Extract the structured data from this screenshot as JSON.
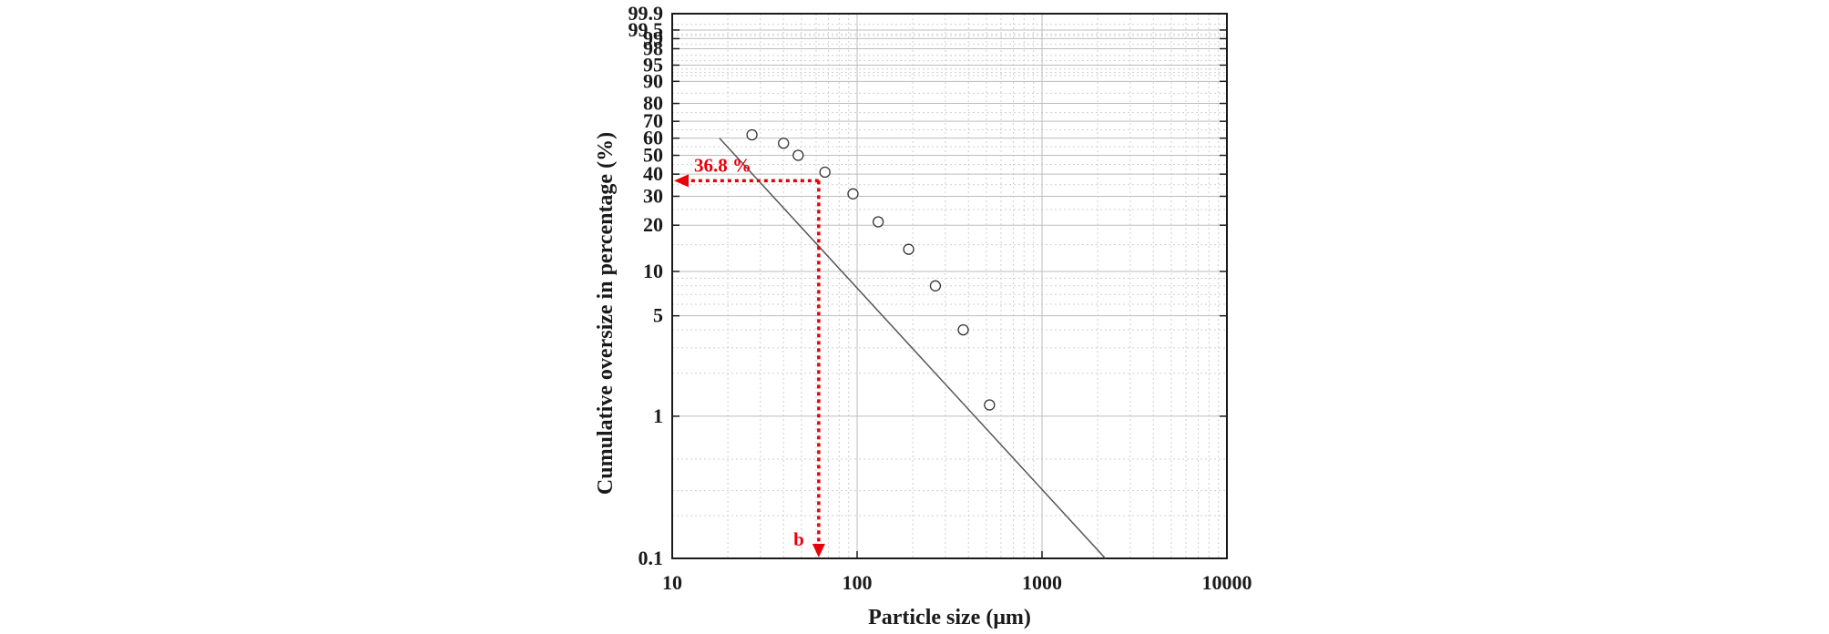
{
  "chart_data": {
    "type": "scatter",
    "xlabel": "Particle size (μm)",
    "ylabel": "Cumulative oversize in percentage (%)",
    "x_scale": "log",
    "y_scale": "weibull",
    "xlim": [
      10,
      10000
    ],
    "ylim": [
      0.1,
      99.9
    ],
    "x_ticks": [
      "10",
      "100",
      "1000",
      "10000"
    ],
    "y_ticks": [
      "0.1",
      "1",
      "5",
      "10",
      "20",
      "30",
      "40",
      "50",
      "60",
      "70",
      "80",
      "90",
      "95",
      "98",
      "99",
      "99.5",
      "99.9"
    ],
    "grid": true,
    "points": [
      {
        "x": 27,
        "y": 62
      },
      {
        "x": 40,
        "y": 57
      },
      {
        "x": 48,
        "y": 50
      },
      {
        "x": 67,
        "y": 41
      },
      {
        "x": 95,
        "y": 31
      },
      {
        "x": 130,
        "y": 21
      },
      {
        "x": 190,
        "y": 14
      },
      {
        "x": 265,
        "y": 8
      },
      {
        "x": 375,
        "y": 4
      },
      {
        "x": 520,
        "y": 1.2
      }
    ],
    "fit_line": {
      "x": [
        18,
        2200
      ],
      "y": [
        60,
        0.1
      ]
    },
    "annotations": [
      {
        "text": "36.8 %",
        "x": 62,
        "y": 36.8
      },
      {
        "text": "b",
        "x": 62,
        "y": 0.1
      }
    ],
    "colors": {
      "annotation": "#e8000b",
      "markers": "#333333",
      "fit_line": "#555555"
    }
  }
}
